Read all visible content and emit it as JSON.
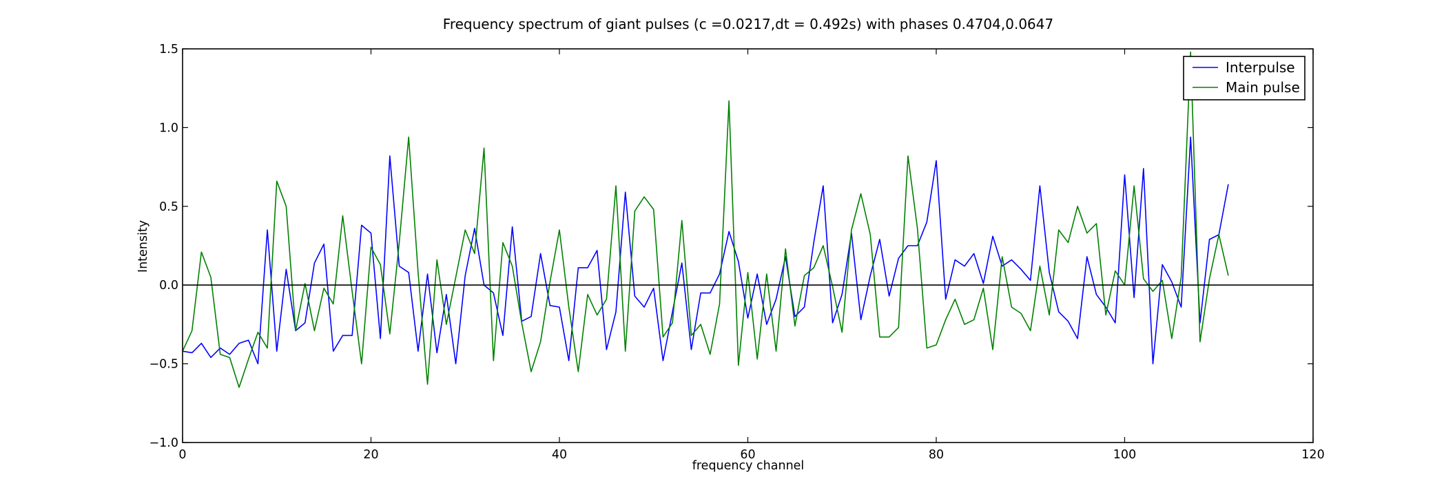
{
  "chart_data": {
    "type": "line",
    "title": "Frequency spectrum of giant pulses (c =0.0217,dt = 0.492s) with phases 0.4704,0.0647",
    "xlabel": "frequency channel",
    "ylabel": "Intensity",
    "xlim": [
      0,
      120
    ],
    "ylim": [
      -1.0,
      1.5
    ],
    "x_ticks": [
      0,
      20,
      40,
      60,
      80,
      100,
      120
    ],
    "y_ticks": [
      -1.0,
      -0.5,
      0.0,
      0.5,
      1.0,
      1.5
    ],
    "x_tick_labels": [
      "0",
      "20",
      "40",
      "60",
      "80",
      "100",
      "120"
    ],
    "y_tick_labels": [
      "−1.0",
      "−0.5",
      "0.0",
      "0.5",
      "1.0",
      "1.5"
    ],
    "reference_line_y": 0,
    "grid": false,
    "legend_position": "top-right",
    "series": [
      {
        "name": "Interpulse",
        "color": "#0000ff",
        "values": [
          -0.42,
          -0.43,
          -0.37,
          -0.46,
          -0.4,
          -0.44,
          -0.37,
          -0.35,
          -0.5,
          0.35,
          -0.42,
          0.1,
          -0.29,
          -0.24,
          0.14,
          0.26,
          -0.42,
          -0.32,
          -0.32,
          0.38,
          0.33,
          -0.34,
          0.82,
          0.12,
          0.08,
          -0.42,
          0.07,
          -0.43,
          -0.06,
          -0.5,
          0.06,
          0.36,
          0.0,
          -0.05,
          -0.32,
          0.37,
          -0.23,
          -0.2,
          0.2,
          -0.13,
          -0.14,
          -0.48,
          0.11,
          0.11,
          0.22,
          -0.41,
          -0.17,
          0.59,
          -0.07,
          -0.14,
          -0.02,
          -0.48,
          -0.17,
          0.14,
          -0.41,
          -0.05,
          -0.05,
          0.07,
          0.34,
          0.15,
          -0.21,
          0.07,
          -0.25,
          -0.09,
          0.18,
          -0.2,
          -0.14,
          0.27,
          0.63,
          -0.24,
          -0.06,
          0.33,
          -0.22,
          0.06,
          0.29,
          -0.07,
          0.17,
          0.25,
          0.25,
          0.4,
          0.79,
          -0.09,
          0.16,
          0.12,
          0.2,
          0.01,
          0.31,
          0.12,
          0.16,
          0.1,
          0.03,
          0.63,
          0.08,
          -0.17,
          -0.23,
          -0.34,
          0.18,
          -0.06,
          -0.14,
          -0.24,
          0.7,
          -0.08,
          0.74,
          -0.5,
          0.13,
          0.02,
          -0.14,
          0.94,
          -0.24,
          0.29,
          0.32,
          0.64
        ]
      },
      {
        "name": "Main pulse",
        "color": "#008000",
        "values": [
          -0.42,
          -0.29,
          0.21,
          0.05,
          -0.44,
          -0.46,
          -0.65,
          -0.47,
          -0.3,
          -0.4,
          0.66,
          0.5,
          -0.29,
          0.01,
          -0.29,
          -0.02,
          -0.12,
          0.44,
          -0.04,
          -0.5,
          0.24,
          0.13,
          -0.31,
          0.27,
          0.94,
          0.08,
          -0.63,
          0.16,
          -0.25,
          0.05,
          0.35,
          0.2,
          0.87,
          -0.48,
          0.27,
          0.12,
          -0.24,
          -0.55,
          -0.36,
          0.02,
          0.35,
          -0.14,
          -0.55,
          -0.06,
          -0.19,
          -0.09,
          0.63,
          -0.42,
          0.47,
          0.56,
          0.48,
          -0.33,
          -0.24,
          0.41,
          -0.32,
          -0.25,
          -0.44,
          -0.12,
          1.17,
          -0.51,
          0.08,
          -0.47,
          0.07,
          -0.42,
          0.23,
          -0.26,
          0.06,
          0.11,
          0.25,
          -0.01,
          -0.3,
          0.35,
          0.58,
          0.32,
          -0.33,
          -0.33,
          -0.27,
          0.82,
          0.36,
          -0.4,
          -0.38,
          -0.22,
          -0.09,
          -0.25,
          -0.22,
          -0.02,
          -0.41,
          0.18,
          -0.14,
          -0.18,
          -0.29,
          0.12,
          -0.19,
          0.35,
          0.27,
          0.5,
          0.33,
          0.39,
          -0.19,
          0.09,
          0.0,
          0.63,
          0.04,
          -0.04,
          0.03,
          -0.34,
          0.05,
          1.48,
          -0.36,
          0.04,
          0.32,
          0.06
        ]
      }
    ]
  }
}
